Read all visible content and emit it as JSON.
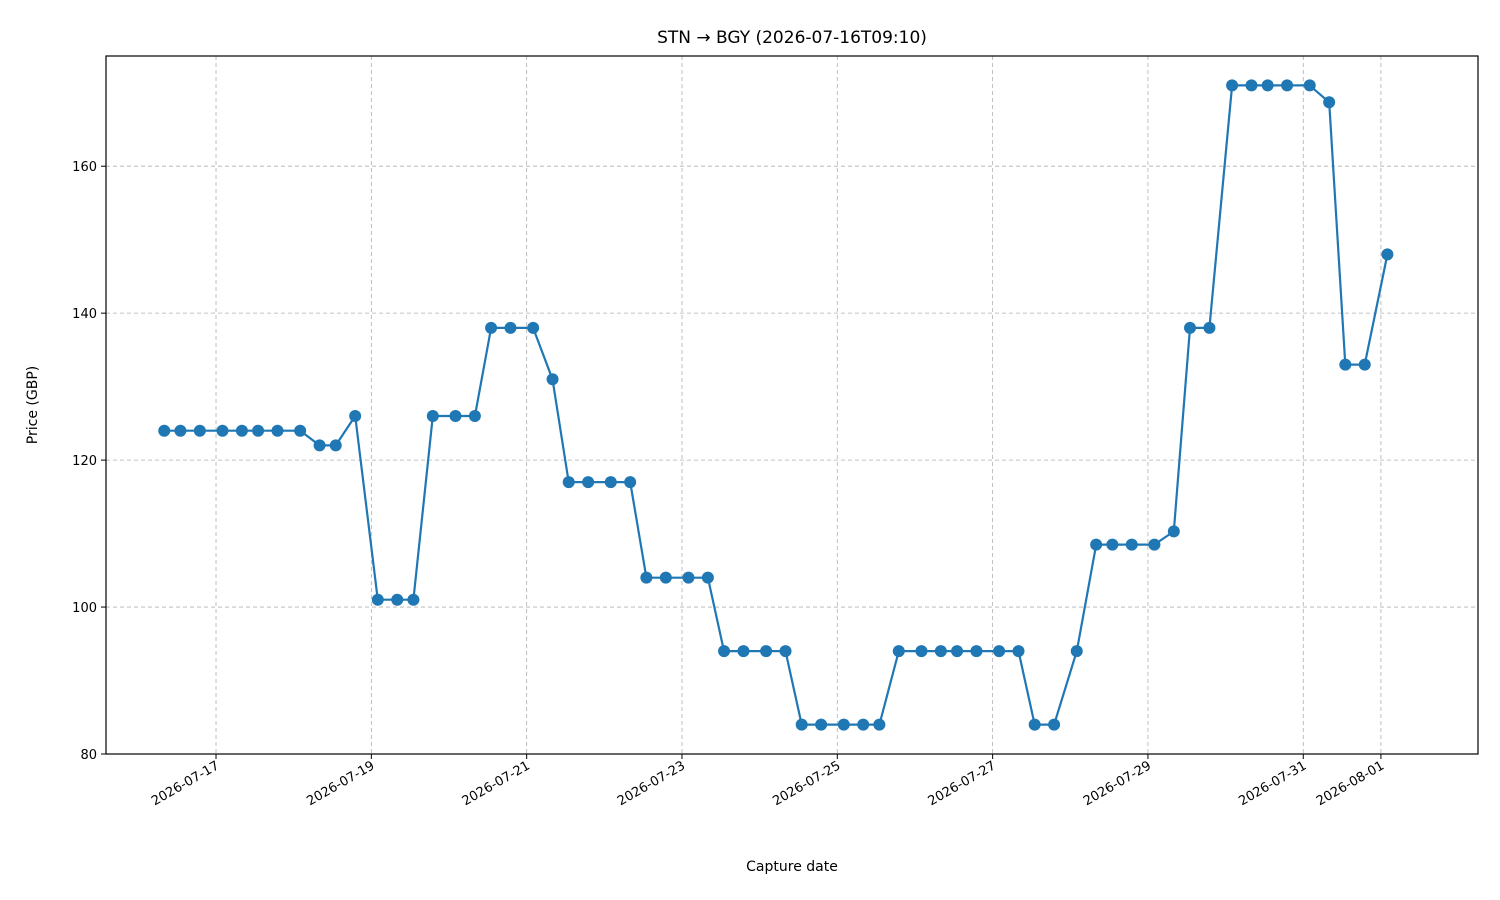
{
  "chart_data": {
    "type": "line",
    "title": "STN → BGY (2026-07-16T09:10)",
    "xlabel": "Capture date",
    "ylabel": "Price (GBP)",
    "xlim": [
      "2026-07-15T14:00",
      "2026-08-02T06:00"
    ],
    "ylim": [
      80,
      175
    ],
    "yticks": [
      80,
      100,
      120,
      140,
      160
    ],
    "xticks": [
      "2026-07-17",
      "2026-07-19",
      "2026-07-21",
      "2026-07-23",
      "2026-07-25",
      "2026-07-27",
      "2026-07-29",
      "2026-07-31",
      "2026-08-01"
    ],
    "grid": true,
    "color": "#1f77b4",
    "series": [
      {
        "x": [
          "2026-07-16T08:00",
          "2026-07-16T13:00",
          "2026-07-16T19:00",
          "2026-07-17T02:00",
          "2026-07-17T08:00",
          "2026-07-17T13:00",
          "2026-07-17T19:00",
          "2026-07-18T02:00",
          "2026-07-18T08:00",
          "2026-07-18T13:00",
          "2026-07-18T19:00",
          "2026-07-19T02:00",
          "2026-07-19T08:00",
          "2026-07-19T13:00",
          "2026-07-19T19:00",
          "2026-07-20T02:00",
          "2026-07-20T08:00",
          "2026-07-20T13:00",
          "2026-07-20T19:00",
          "2026-07-21T02:00",
          "2026-07-21T08:00",
          "2026-07-21T13:00",
          "2026-07-21T19:00",
          "2026-07-22T02:00",
          "2026-07-22T08:00",
          "2026-07-22T13:00",
          "2026-07-22T19:00",
          "2026-07-23T02:00",
          "2026-07-23T08:00",
          "2026-07-23T13:00",
          "2026-07-23T19:00",
          "2026-07-24T02:00",
          "2026-07-24T08:00",
          "2026-07-24T13:00",
          "2026-07-24T19:00",
          "2026-07-25T02:00",
          "2026-07-25T08:00",
          "2026-07-25T13:00",
          "2026-07-25T19:00",
          "2026-07-26T02:00",
          "2026-07-26T08:00",
          "2026-07-26T13:00",
          "2026-07-26T19:00",
          "2026-07-27T02:00",
          "2026-07-27T08:00",
          "2026-07-27T13:00",
          "2026-07-27T19:00",
          "2026-07-28T02:00",
          "2026-07-28T08:00",
          "2026-07-28T13:00",
          "2026-07-28T19:00",
          "2026-07-29T02:00",
          "2026-07-29T08:00",
          "2026-07-29T13:00",
          "2026-07-29T19:00",
          "2026-07-30T02:00",
          "2026-07-30T08:00",
          "2026-07-30T13:00",
          "2026-07-30T19:00",
          "2026-07-31T02:00",
          "2026-07-31T08:00",
          "2026-07-31T13:00",
          "2026-07-31T19:00",
          "2026-08-01T02:00"
        ],
        "values": [
          124,
          124,
          124,
          124,
          124,
          124,
          124,
          124,
          122,
          122,
          126,
          101,
          101,
          101,
          126,
          126,
          126,
          138,
          138,
          138,
          131,
          117,
          117,
          117,
          117,
          104,
          104,
          104,
          104,
          94,
          94,
          94,
          94,
          84,
          84,
          84,
          84,
          84,
          94,
          94,
          94,
          94,
          94,
          94,
          94,
          84,
          84,
          94,
          108.5,
          108.5,
          108.5,
          108.5,
          110.3,
          138,
          138,
          171,
          171,
          171,
          171,
          171,
          168.7,
          133,
          133,
          148
        ]
      }
    ]
  }
}
